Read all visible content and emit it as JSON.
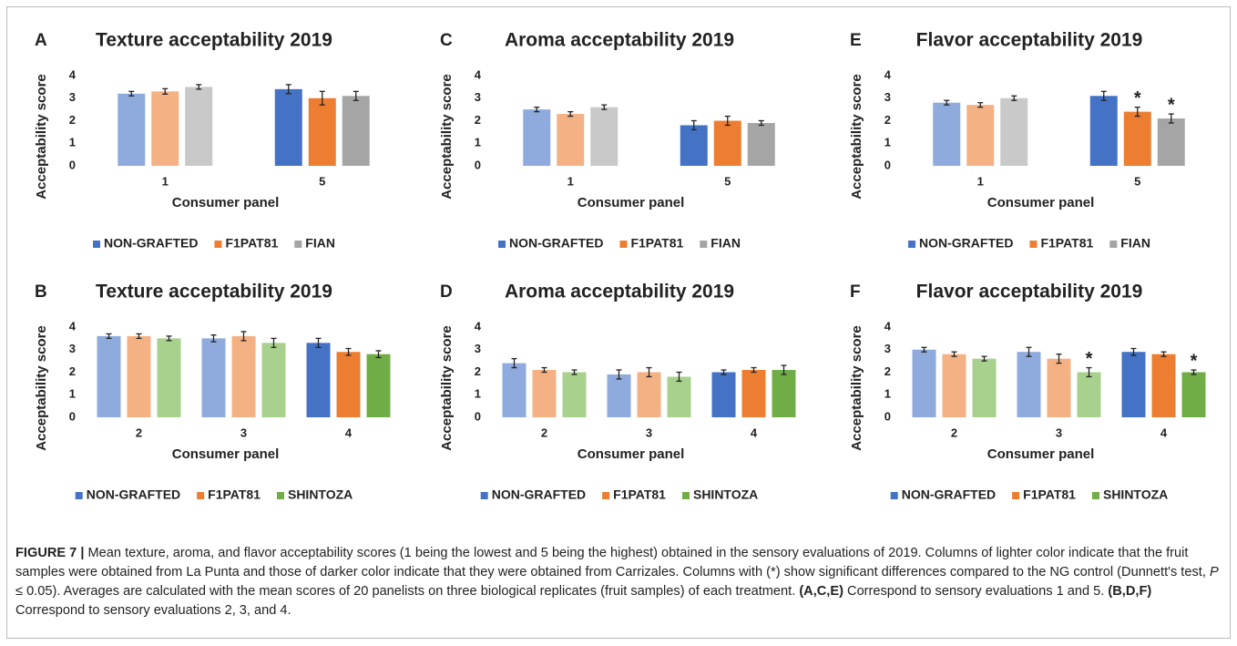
{
  "chart_data": [
    {
      "type": "bar",
      "panel": "A",
      "title": "Texture acceptability 2019",
      "y_label": "Acceptability score",
      "x_label": "Consumer panel",
      "categories": [
        "1",
        "5"
      ],
      "ylim": [
        0,
        4
      ],
      "yticks": [
        0,
        1,
        2,
        3,
        4
      ],
      "series": [
        {
          "name": "NON-GRAFTED",
          "color": "#4472c4",
          "colors": [
            "#8faadc",
            "#4472c4"
          ],
          "values": [
            3.2,
            3.4
          ],
          "errors": [
            0.1,
            0.2
          ]
        },
        {
          "name": "F1PAT81",
          "color": "#ed7d31",
          "colors": [
            "#f4b183",
            "#ed7d31"
          ],
          "values": [
            3.3,
            3.0
          ],
          "errors": [
            0.12,
            0.3
          ]
        },
        {
          "name": "FIAN",
          "color": "#a5a5a5",
          "colors": [
            "#c9c9c9",
            "#a5a5a5"
          ],
          "values": [
            3.5,
            3.1
          ],
          "errors": [
            0.1,
            0.2
          ]
        }
      ]
    },
    {
      "type": "bar",
      "panel": "C",
      "title": "Aroma acceptability 2019",
      "y_label": "Acceptability score",
      "x_label": "Consumer panel",
      "categories": [
        "1",
        "5"
      ],
      "ylim": [
        0,
        4
      ],
      "yticks": [
        0,
        1,
        2,
        3,
        4
      ],
      "series": [
        {
          "name": "NON-GRAFTED",
          "color": "#4472c4",
          "colors": [
            "#8faadc",
            "#4472c4"
          ],
          "values": [
            2.5,
            1.8
          ],
          "errors": [
            0.1,
            0.2
          ]
        },
        {
          "name": "F1PAT81",
          "color": "#ed7d31",
          "colors": [
            "#f4b183",
            "#ed7d31"
          ],
          "values": [
            2.3,
            2.0
          ],
          "errors": [
            0.1,
            0.2
          ]
        },
        {
          "name": "FIAN",
          "color": "#a5a5a5",
          "colors": [
            "#c9c9c9",
            "#a5a5a5"
          ],
          "values": [
            2.6,
            1.9
          ],
          "errors": [
            0.1,
            0.1
          ]
        }
      ]
    },
    {
      "type": "bar",
      "panel": "E",
      "title": "Flavor acceptability 2019",
      "y_label": "Acceptability score",
      "x_label": "Consumer panel",
      "categories": [
        "1",
        "5"
      ],
      "ylim": [
        0,
        4
      ],
      "yticks": [
        0,
        1,
        2,
        3,
        4
      ],
      "series": [
        {
          "name": "NON-GRAFTED",
          "color": "#4472c4",
          "colors": [
            "#8faadc",
            "#4472c4"
          ],
          "values": [
            2.8,
            3.1
          ],
          "errors": [
            0.1,
            0.2
          ]
        },
        {
          "name": "F1PAT81",
          "color": "#ed7d31",
          "colors": [
            "#f4b183",
            "#ed7d31"
          ],
          "values": [
            2.7,
            2.4
          ],
          "errors": [
            0.1,
            0.2
          ],
          "markers": [
            null,
            "*"
          ]
        },
        {
          "name": "FIAN",
          "color": "#a5a5a5",
          "colors": [
            "#c9c9c9",
            "#a5a5a5"
          ],
          "values": [
            3.0,
            2.1
          ],
          "errors": [
            0.1,
            0.2
          ],
          "markers": [
            null,
            "*"
          ]
        }
      ]
    },
    {
      "type": "bar",
      "panel": "B",
      "title": "Texture acceptability 2019",
      "y_label": "Acceptability score",
      "x_label": "Consumer panel",
      "categories": [
        "2",
        "3",
        "4"
      ],
      "ylim": [
        0,
        4
      ],
      "yticks": [
        0,
        1,
        2,
        3,
        4
      ],
      "series": [
        {
          "name": "NON-GRAFTED",
          "color": "#4472c4",
          "colors": [
            "#8faadc",
            "#8faadc",
            "#4472c4"
          ],
          "values": [
            3.6,
            3.5,
            3.3
          ],
          "errors": [
            0.1,
            0.15,
            0.2
          ]
        },
        {
          "name": "F1PAT81",
          "color": "#ed7d31",
          "colors": [
            "#f4b183",
            "#f4b183",
            "#ed7d31"
          ],
          "values": [
            3.6,
            3.6,
            2.9
          ],
          "errors": [
            0.1,
            0.2,
            0.15
          ]
        },
        {
          "name": "SHINTOZA",
          "color": "#70ad47",
          "colors": [
            "#a9d18e",
            "#a9d18e",
            "#70ad47"
          ],
          "values": [
            3.5,
            3.3,
            2.8
          ],
          "errors": [
            0.1,
            0.2,
            0.15
          ]
        }
      ]
    },
    {
      "type": "bar",
      "panel": "D",
      "title": "Aroma acceptability 2019",
      "y_label": "Acceptability score",
      "x_label": "Consumer panel",
      "categories": [
        "2",
        "3",
        "4"
      ],
      "ylim": [
        0,
        4
      ],
      "yticks": [
        0,
        1,
        2,
        3,
        4
      ],
      "series": [
        {
          "name": "NON-GRAFTED",
          "color": "#4472c4",
          "colors": [
            "#8faadc",
            "#8faadc",
            "#4472c4"
          ],
          "values": [
            2.4,
            1.9,
            2.0
          ],
          "errors": [
            0.2,
            0.2,
            0.1
          ]
        },
        {
          "name": "F1PAT81",
          "color": "#ed7d31",
          "colors": [
            "#f4b183",
            "#f4b183",
            "#ed7d31"
          ],
          "values": [
            2.1,
            2.0,
            2.1
          ],
          "errors": [
            0.1,
            0.2,
            0.1
          ]
        },
        {
          "name": "SHINTOZA",
          "color": "#70ad47",
          "colors": [
            "#a9d18e",
            "#a9d18e",
            "#70ad47"
          ],
          "values": [
            2.0,
            1.8,
            2.1
          ],
          "errors": [
            0.1,
            0.2,
            0.2
          ]
        }
      ]
    },
    {
      "type": "bar",
      "panel": "F",
      "title": "Flavor acceptability 2019",
      "y_label": "Acceptability score",
      "x_label": "Consumer panel",
      "categories": [
        "2",
        "3",
        "4"
      ],
      "ylim": [
        0,
        4
      ],
      "yticks": [
        0,
        1,
        2,
        3,
        4
      ],
      "series": [
        {
          "name": "NON-GRAFTED",
          "color": "#4472c4",
          "colors": [
            "#8faadc",
            "#8faadc",
            "#4472c4"
          ],
          "values": [
            3.0,
            2.9,
            2.9
          ],
          "errors": [
            0.1,
            0.2,
            0.15
          ]
        },
        {
          "name": "F1PAT81",
          "color": "#ed7d31",
          "colors": [
            "#f4b183",
            "#f4b183",
            "#ed7d31"
          ],
          "values": [
            2.8,
            2.6,
            2.8
          ],
          "errors": [
            0.1,
            0.2,
            0.1
          ]
        },
        {
          "name": "SHINTOZA",
          "color": "#70ad47",
          "colors": [
            "#a9d18e",
            "#a9d18e",
            "#70ad47"
          ],
          "values": [
            2.6,
            2.0,
            2.0
          ],
          "errors": [
            0.1,
            0.2,
            0.1
          ],
          "markers": [
            null,
            "*",
            "*"
          ]
        }
      ]
    }
  ],
  "caption": {
    "parts": [
      {
        "text": "FIGURE 7 |",
        "bold": true
      },
      {
        "text": " Mean texture, aroma, and flavor acceptability scores (1 being the lowest and 5 being the highest) obtained in the sensory evaluations of 2019. Columns of lighter color indicate that the fruit samples were obtained from La Punta and those of darker color indicate that they were obtained from Carrizales. Columns with (*) show significant differences compared to the NG control (Dunnett's test, "
      },
      {
        "text": "P",
        "italic": true
      },
      {
        "text": " ≤ 0.05). Averages are calculated with the mean scores of 20 panelists on three biological replicates (fruit samples) of each treatment. "
      },
      {
        "text": "(A,C,E)",
        "bold": true
      },
      {
        "text": " Correspond to sensory evaluations 1 and 5. "
      },
      {
        "text": "(B,D,F)",
        "bold": true
      },
      {
        "text": " Correspond to sensory evaluations 2, 3, and 4."
      }
    ]
  }
}
